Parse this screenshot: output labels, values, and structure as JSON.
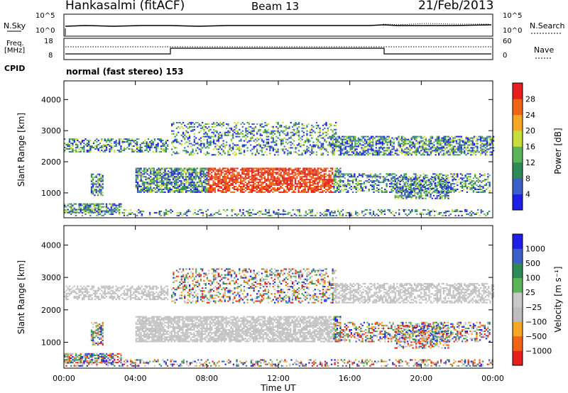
{
  "header": {
    "station": "Hankasalmi (fitACF)",
    "beam": "Beam 13",
    "date": "21/Feb/2013"
  },
  "strip_panels": {
    "nsky_label": "N.Sky",
    "nsky_ticks": [
      "10^5",
      "10^0"
    ],
    "nsearch_label": "N.Search",
    "nsearch_ticks": [
      "10^5",
      "10^0"
    ],
    "freq_label_1": "Freq.",
    "freq_label_2": "[MHz]",
    "freq_ticks": [
      "18",
      "8"
    ],
    "nave_label": "Nave",
    "nave_ticks": [
      "60",
      "0"
    ],
    "cpid_label": "CPID",
    "cpid_value": "normal (fast stereo) 153"
  },
  "colors": {
    "power": [
      "#1e1ee6",
      "#3c5fc8",
      "#2e8b57",
      "#5ab45a",
      "#c8dc3c",
      "#f5a623",
      "#f06414",
      "#e61e1e"
    ],
    "velocity": [
      "#e61e1e",
      "#f06414",
      "#f5a623",
      "#bebebe",
      "#c8c8c8",
      "#5ab45a",
      "#2e8b57",
      "#3c5fc8",
      "#1e1ee6"
    ]
  },
  "chart_data": [
    {
      "type": "heatmap",
      "name": "power",
      "ylabel": "Slant Range [km]",
      "xlabel": "Time UT",
      "x_ticks": [
        "00:00",
        "04:00",
        "08:00",
        "12:00",
        "16:00",
        "20:00",
        "00:00"
      ],
      "y_ticks": [
        "1000",
        "2000",
        "3000",
        "4000"
      ],
      "ylim": [
        200,
        4600
      ],
      "colorbar_label": "Power [dB]",
      "colorbar_ticks": [
        "4",
        "8",
        "12",
        "16",
        "20",
        "24",
        "28"
      ],
      "crange": [
        0,
        32
      ]
    },
    {
      "type": "heatmap",
      "name": "velocity",
      "ylabel": "Slant Range [km]",
      "xlabel": "Time UT",
      "x_ticks": [
        "00:00",
        "04:00",
        "08:00",
        "12:00",
        "16:00",
        "20:00",
        "00:00"
      ],
      "y_ticks": [
        "1000",
        "2000",
        "3000",
        "4000"
      ],
      "ylim": [
        200,
        4600
      ],
      "colorbar_label": "Velocity [m s⁻¹]",
      "colorbar_ticks": [
        "1000",
        "500",
        "100",
        "25",
        "−25",
        "−100",
        "−500",
        "−1000"
      ]
    }
  ],
  "time_axis": {
    "label": "Time UT"
  }
}
